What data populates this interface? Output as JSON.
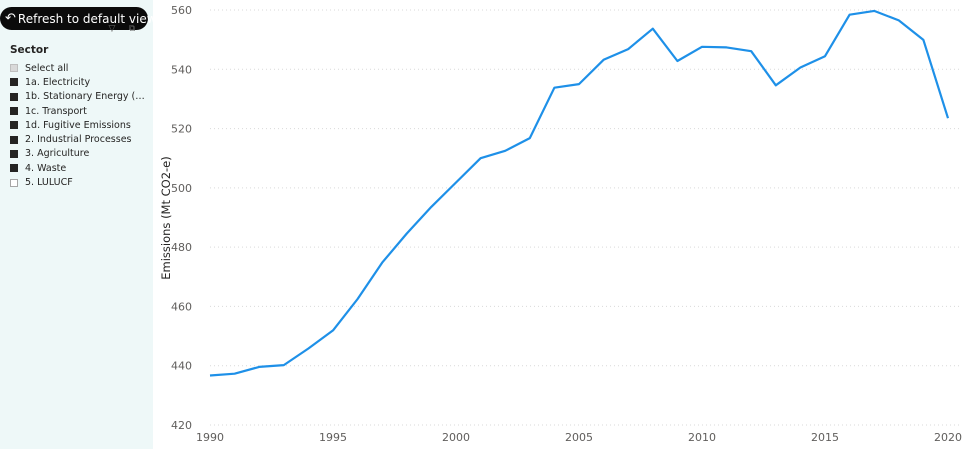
{
  "toolbar": {
    "refresh_label": "Refresh to default view",
    "refresh_icon": "undo-arrow-icon",
    "filter_icon": "filter-icon",
    "focus_icon": "focus-mode-icon"
  },
  "slicer": {
    "title": "Sector",
    "items": [
      {
        "label": "Select all",
        "state": "partial"
      },
      {
        "label": "1a. Electricity",
        "state": "checked"
      },
      {
        "label": "1b. Stationary Energy (e…",
        "state": "checked"
      },
      {
        "label": "1c. Transport",
        "state": "checked"
      },
      {
        "label": "1d. Fugitive Emissions",
        "state": "checked"
      },
      {
        "label": "2. Industrial Processes",
        "state": "checked"
      },
      {
        "label": "3. Agriculture",
        "state": "checked"
      },
      {
        "label": "4. Waste",
        "state": "checked"
      },
      {
        "label": "5. LULUCF",
        "state": "unchecked"
      }
    ]
  },
  "colors": {
    "line": "#1e90e8",
    "grid": "#d9d9d9",
    "axis_text": "#605e5c",
    "sidebar_bg": "#eef8f8"
  },
  "chart_data": {
    "type": "line",
    "ylabel": "Emissions (Mt CO2-e)",
    "xlabel": "",
    "ylim": [
      420,
      560
    ],
    "xlim": [
      1990,
      2020
    ],
    "yticks": [
      420,
      440,
      460,
      480,
      500,
      520,
      540,
      560
    ],
    "xticks": [
      1990,
      1995,
      2000,
      2005,
      2010,
      2015,
      2020
    ],
    "grid": true,
    "x": [
      1990,
      1991,
      1992,
      1993,
      1994,
      1995,
      1996,
      1997,
      1998,
      1999,
      2000,
      2001,
      2002,
      2003,
      2004,
      2005,
      2006,
      2007,
      2008,
      2009,
      2010,
      2011,
      2012,
      2013,
      2014,
      2015,
      2016,
      2017,
      2018,
      2019,
      2020
    ],
    "y": [
      436.7,
      437.3,
      439.6,
      440.2,
      445.8,
      451.9,
      462.5,
      474.8,
      484.6,
      493.6,
      501.8,
      510.0,
      512.5,
      516.8,
      533.8,
      535.0,
      543.2,
      546.8,
      553.7,
      542.8,
      547.6,
      547.4,
      546.1,
      534.6,
      540.6,
      544.4,
      558.4,
      559.7,
      556.5,
      549.9,
      523.5
    ]
  }
}
